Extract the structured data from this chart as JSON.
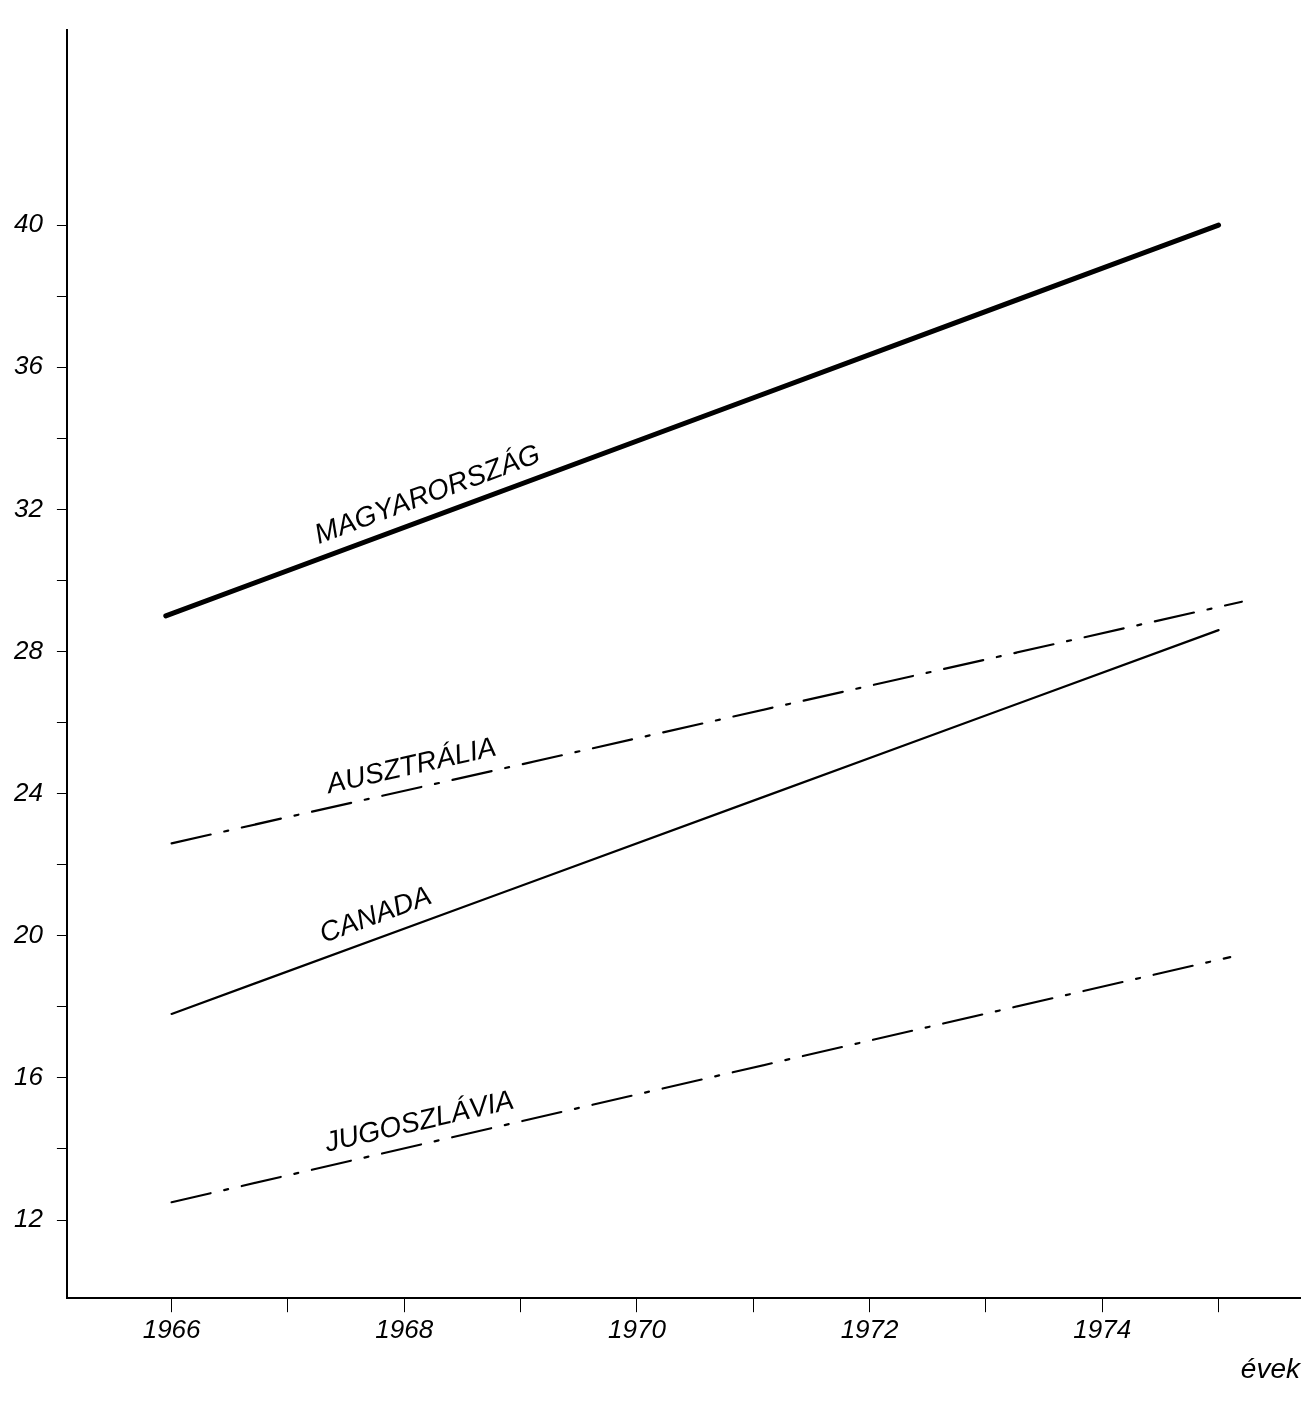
{
  "chart_data": {
    "type": "line",
    "xlabel": "évek",
    "xlim": [
      1965.1,
      1975.7
    ],
    "ylim": [
      9.8,
      45.5
    ],
    "xticks": [
      1966,
      {
        "value": 1967,
        "label": null
      },
      1968,
      {
        "value": 1969,
        "label": null
      },
      1970,
      {
        "value": 1971,
        "label": null
      },
      1972,
      {
        "value": 1973,
        "label": null
      },
      1974,
      {
        "value": 1975,
        "label": null
      }
    ],
    "yticks": [
      12,
      {
        "value": 14,
        "label": null
      },
      16,
      {
        "value": 18,
        "label": null
      },
      20,
      {
        "value": 22,
        "label": null
      },
      24,
      {
        "value": 26,
        "label": null
      },
      28,
      {
        "value": 30,
        "label": null
      },
      32,
      {
        "value": 34,
        "label": null
      },
      36,
      {
        "value": 38,
        "label": null
      },
      40
    ],
    "grid": false,
    "legend": false,
    "marker": "none",
    "series": [
      {
        "name": "MAGYARORSZÁG",
        "color": "#000000",
        "line_style": "solid",
        "x": [
          1965.95,
          1975
        ],
        "values": [
          29,
          40
        ]
      },
      {
        "name": "AUSZTRÁLIA",
        "color": "#000000",
        "line_style": "dashed",
        "x": [
          1966,
          1975.2
        ],
        "values": [
          22.6,
          29.4
        ]
      },
      {
        "name": "CANADA",
        "color": "#000000",
        "line_style": "solid",
        "x": [
          1966,
          1975
        ],
        "values": [
          17.8,
          28.6
        ]
      },
      {
        "name": "JUGOSZLÁVIA",
        "color": "#000000",
        "line_style": "dashed",
        "x": [
          1966,
          1975.1
        ],
        "values": [
          12.5,
          19.4
        ]
      }
    ]
  }
}
